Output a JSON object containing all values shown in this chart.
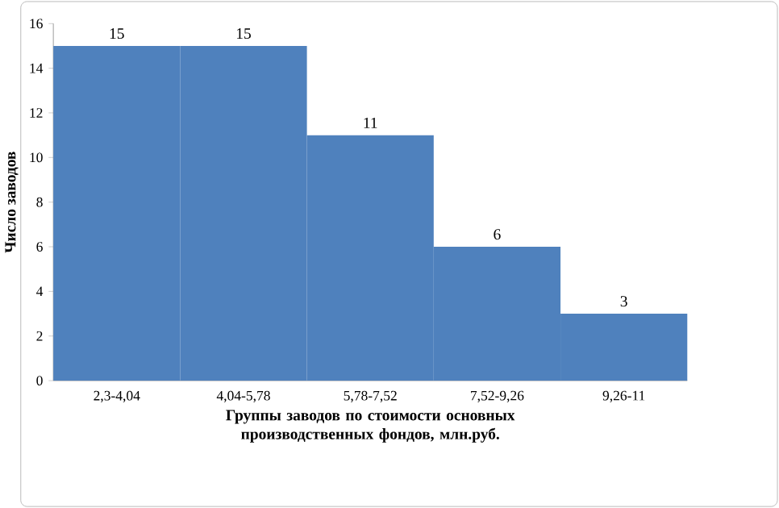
{
  "chart_data": {
    "type": "bar",
    "xlabel": "Группы заводов по стоимости основных производственных фондов, млн.руб.",
    "ylabel": "Число заводов",
    "categories": [
      "2,3-4,04",
      "4,04-5,78",
      "5,78-7,52",
      "7,52-9,26",
      "9,26-11"
    ],
    "values": [
      15,
      15,
      11,
      6,
      3
    ],
    "color": "#4f81bd",
    "ylim": [
      0,
      16
    ],
    "yticks": [
      0,
      2,
      4,
      6,
      8,
      10,
      12,
      14,
      16
    ],
    "data_labels": true
  }
}
